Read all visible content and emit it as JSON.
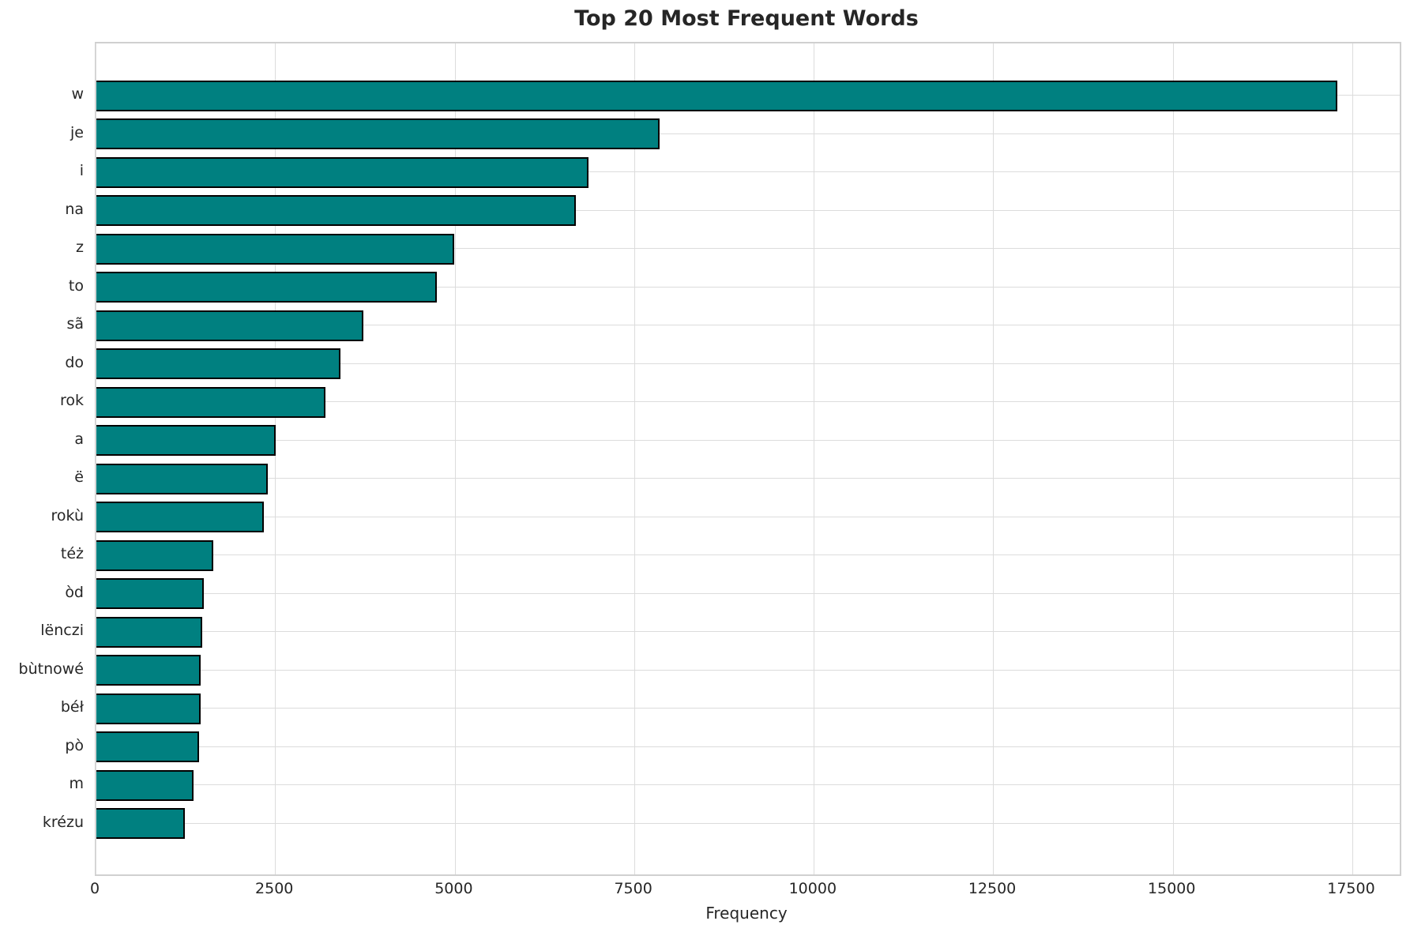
{
  "chart_data": {
    "type": "bar",
    "orientation": "horizontal",
    "title": "Top 20 Most Frequent Words",
    "xlabel": "Frequency",
    "ylabel": "",
    "categories": [
      "w",
      "je",
      "i",
      "na",
      "z",
      "to",
      "sã",
      "do",
      "rok",
      "a",
      "ë",
      "rokù",
      "téż",
      "òd",
      "lënczi",
      "bùtnowé",
      "béł",
      "pò",
      "m",
      "krézu"
    ],
    "values": [
      17290,
      7845,
      6860,
      6680,
      4980,
      4740,
      3715,
      3400,
      3190,
      2495,
      2385,
      2335,
      1630,
      1495,
      1475,
      1455,
      1450,
      1425,
      1350,
      1230
    ],
    "xticks": [
      0,
      2500,
      5000,
      7500,
      10000,
      12500,
      15000,
      17500
    ],
    "xlim": [
      0,
      18155
    ],
    "grid": true,
    "legend": false,
    "colors": {
      "bar_fill": "#008080",
      "bar_edge": "#000000",
      "grid": "#dcdcdc",
      "spine": "#d0d0d0",
      "text": "#262626",
      "background": "#ffffff"
    }
  }
}
